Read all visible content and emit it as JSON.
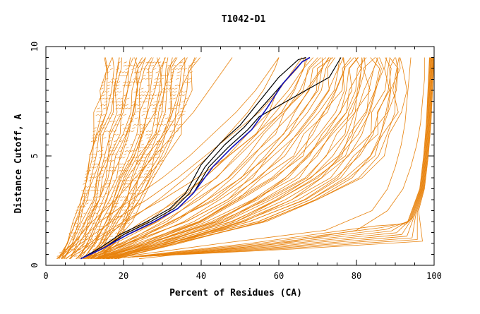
{
  "chart_data": {
    "type": "line",
    "title": "T1042-D1",
    "xlabel": "Percent of Residues (CA)",
    "ylabel": "Distance Cutoff, A",
    "xlim": [
      0,
      100
    ],
    "ylim": [
      0,
      10
    ],
    "x_ticks": [
      "0",
      "20",
      "40",
      "60",
      "80",
      "100"
    ],
    "y_ticks": [
      "0",
      "5",
      "10"
    ],
    "grid": false,
    "legend": "none",
    "colors": {
      "models": "#e8820c",
      "highlight_dark": "#000000",
      "highlight_blue": "#1010c0"
    },
    "series_groups": {
      "steep_cluster": {
        "count": 30,
        "y": [
          0.3,
          1.0,
          2.0,
          3.0,
          4.0,
          5.0,
          6.0,
          7.0,
          8.0,
          9.0,
          9.5
        ],
        "x_left": [
          2.5,
          5,
          7,
          8.5,
          10,
          11,
          12,
          13,
          14,
          15,
          15.5
        ],
        "x_right": [
          14,
          18,
          22,
          25,
          28,
          31,
          34,
          36,
          37,
          38,
          39
        ]
      },
      "scattered_mid": [
        {
          "x": [
            3,
            8,
            14,
            22,
            30,
            37,
            43,
            49,
            54,
            58,
            60
          ],
          "y": [
            0.3,
            1.0,
            2.0,
            3.0,
            4.0,
            5.0,
            6.0,
            7.0,
            8.0,
            9.0,
            9.5
          ]
        },
        {
          "x": [
            4,
            9,
            17,
            26,
            34,
            41,
            48,
            55,
            60,
            64,
            66
          ],
          "y": [
            0.3,
            1.0,
            2.0,
            3.0,
            4.0,
            5.0,
            6.0,
            7.0,
            8.0,
            9.0,
            9.5
          ]
        },
        {
          "x": [
            5,
            11,
            20,
            30,
            39,
            47,
            54,
            61,
            67,
            71,
            73
          ],
          "y": [
            0.3,
            1.0,
            2.0,
            3.0,
            4.0,
            5.0,
            6.0,
            7.0,
            8.0,
            9.0,
            9.5
          ]
        },
        {
          "x": [
            3,
            7,
            12,
            18,
            23,
            28,
            33,
            38,
            42,
            46,
            48
          ],
          "y": [
            0.3,
            1.0,
            2.0,
            3.0,
            4.0,
            5.0,
            6.0,
            7.0,
            8.0,
            9.0,
            9.5
          ]
        },
        {
          "x": [
            6,
            12,
            21,
            29,
            36,
            42,
            47,
            52,
            56,
            59,
            60
          ],
          "y": [
            0.3,
            1.0,
            2.0,
            3.0,
            4.0,
            5.0,
            6.0,
            7.0,
            8.0,
            9.0,
            9.5
          ]
        }
      ],
      "right_cluster": {
        "count": 40,
        "y": [
          0.3,
          1.0,
          2.0,
          3.0,
          4.0,
          5.0,
          6.0,
          7.0,
          8.0,
          9.0,
          9.5
        ],
        "x_left": [
          9,
          16,
          25,
          33,
          40,
          46,
          52,
          57,
          61,
          64,
          66
        ],
        "x_right": [
          18,
          34,
          56,
          70,
          80,
          86,
          89,
          91,
          92,
          92,
          92
        ]
      },
      "far_right": [
        {
          "x": [
            16,
            45,
            72,
            84,
            88,
            90,
            91.5,
            92.5,
            93,
            93.5,
            94
          ],
          "y": [
            0.3,
            1.0,
            1.6,
            2.5,
            3.5,
            4.5,
            5.5,
            6.5,
            7.5,
            8.5,
            9.5
          ]
        },
        {
          "x": [
            24,
            60,
            80,
            88,
            92,
            94,
            95.5,
            96.5,
            97,
            97.5,
            97.5
          ],
          "y": [
            0.3,
            1.0,
            1.6,
            2.5,
            3.5,
            4.5,
            5.5,
            6.5,
            7.5,
            8.5,
            9.5
          ]
        }
      ],
      "bottom_fan": {
        "count": 10,
        "x_start": [
          20,
          30
        ],
        "y_start": [
          0.35,
          0.45
        ],
        "x_end": [
          85,
          97
        ],
        "y_end": [
          1.1,
          1.8
        ],
        "rise": {
          "x": [
            96,
            97.5,
            98.5,
            99.2,
            99.6,
            100
          ],
          "y": [
            2.5,
            3.5,
            5.0,
            6.5,
            8.0,
            9.5
          ]
        }
      },
      "highlight_dark": [
        {
          "x": [
            9,
            15,
            20,
            27,
            33,
            37,
            41,
            46,
            51,
            56,
            61,
            66,
            68
          ],
          "y": [
            0.3,
            0.8,
            1.4,
            2.0,
            2.6,
            3.3,
            4.5,
            5.5,
            6.3,
            7.3,
            8.3,
            9.3,
            9.5
          ]
        },
        {
          "x": [
            9,
            14,
            19,
            26,
            32,
            36,
            40,
            45,
            50,
            55,
            60,
            65,
            67
          ],
          "y": [
            0.3,
            0.8,
            1.4,
            2.0,
            2.6,
            3.3,
            4.6,
            5.6,
            6.4,
            7.5,
            8.6,
            9.4,
            9.5
          ]
        },
        {
          "x": [
            9,
            15,
            21,
            28,
            34,
            38,
            42,
            47,
            52,
            55,
            62,
            73,
            76
          ],
          "y": [
            0.3,
            0.8,
            1.4,
            2.0,
            2.6,
            3.3,
            4.5,
            5.4,
            6.2,
            6.8,
            7.5,
            8.6,
            9.5
          ]
        }
      ],
      "highlight_blue": [
        {
          "x": [
            9,
            15,
            21,
            28,
            34,
            38,
            43,
            48,
            53,
            57,
            61,
            66,
            68
          ],
          "y": [
            0.3,
            0.8,
            1.4,
            2.0,
            2.6,
            3.3,
            4.5,
            5.4,
            6.2,
            7.2,
            8.3,
            9.3,
            9.5
          ]
        }
      ]
    }
  }
}
